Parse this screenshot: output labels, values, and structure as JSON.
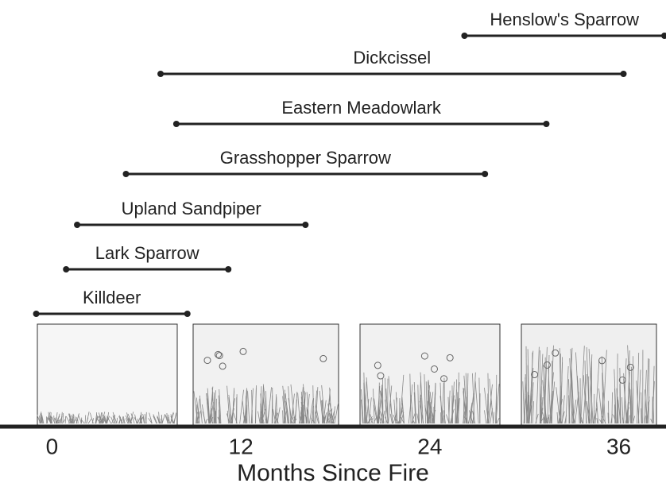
{
  "chart_data": {
    "type": "range",
    "categories": [
      "Henslow's Sparrow",
      "Dickcissel",
      "Eastern Meadowlark",
      "Grasshopper Sparrow",
      "Upland Sandpiper",
      "Lark Sparrow",
      "Killdeer"
    ],
    "start": [
      26.2,
      6.9,
      7.9,
      4.7,
      1.6,
      0.9,
      -1.0
    ],
    "end": [
      38.9,
      36.3,
      31.4,
      27.5,
      16.1,
      11.2,
      8.6
    ],
    "color": "#222222",
    "xlim": [
      -3.3,
      39.0
    ],
    "xticks": [
      0,
      12,
      24,
      36
    ],
    "xlabel": "Months Since Fire"
  }
}
